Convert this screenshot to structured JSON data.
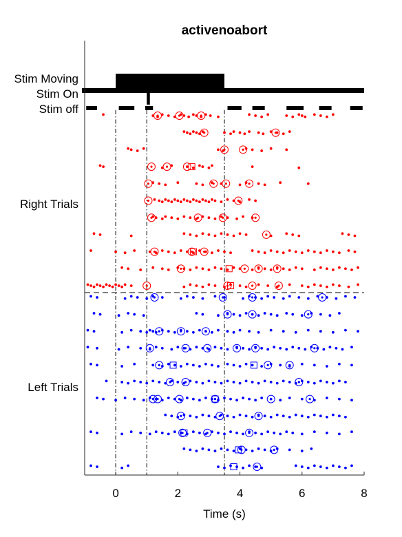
{
  "chart_data": {
    "type": "scatter",
    "title": "activenoabort",
    "xlabel": "Time (s)",
    "ylabel": "",
    "xlim": [
      -1,
      8
    ],
    "xticks": [
      0,
      2,
      4,
      6,
      8
    ],
    "xtick_labels": [
      "0",
      "2",
      "4",
      "6",
      "8"
    ],
    "row_labels": [
      "Stim Moving",
      "Stim On",
      "Stim off",
      "Right Trials",
      "Left Trials"
    ],
    "event_lines_x": [
      0,
      1,
      3.5
    ],
    "colors": {
      "right": "#ff0000",
      "left": "#0000ff",
      "text": "#000000"
    },
    "stim_moving": {
      "start": 0,
      "end": 3.5
    },
    "stim_on": {
      "start": -1,
      "end": 8
    },
    "stim_on_dips": [
      {
        "start": 1,
        "end": 1.1
      }
    ],
    "stim_off_segments": [
      [
        -0.95,
        -0.6
      ],
      [
        0.1,
        0.6
      ],
      [
        0.95,
        1.2
      ],
      [
        3.6,
        4.05
      ],
      [
        4.4,
        4.8
      ],
      [
        5.5,
        6.05
      ],
      [
        6.55,
        6.95
      ],
      [
        7.55,
        7.95
      ]
    ],
    "right_trials": [
      {
        "row": 1,
        "dots": [
          -0.4,
          1.2,
          1.35,
          1.5,
          1.7,
          1.9,
          2.1,
          2.2,
          2.35,
          2.5,
          2.6,
          2.75,
          2.9,
          3.05,
          3.3,
          4.3,
          4.5,
          4.7,
          4.9,
          5.5,
          5.7,
          5.9,
          6.0,
          6.1,
          6.4,
          6.6,
          6.8,
          7.0
        ],
        "circles": [
          1.35,
          2.05,
          2.75
        ],
        "squares": []
      },
      {
        "row": 2,
        "dots": [
          2.2,
          2.3,
          2.4,
          2.5,
          2.6,
          2.7,
          2.8,
          3.5,
          3.7,
          3.8,
          4.0,
          4.15,
          4.3,
          4.6,
          4.75,
          5.0,
          5.2,
          5.4,
          5.6
        ],
        "circles": [
          2.85,
          5.15
        ],
        "squares": []
      },
      {
        "row": 3,
        "dots": [
          0.4,
          0.5,
          0.7,
          0.9,
          3.3,
          3.45,
          4.2,
          4.4,
          4.7,
          5.0,
          5.5
        ],
        "circles": [
          3.5,
          4.1
        ],
        "squares": []
      },
      {
        "row": 4,
        "dots": [
          -0.5,
          -0.4,
          1.5,
          1.8,
          2.3,
          2.5,
          2.7,
          2.8,
          3.0,
          3.1,
          4.4,
          5.9
        ],
        "circles": [
          1.15,
          1.65,
          2.3
        ],
        "squares": [
          2.45
        ]
      },
      {
        "row": 5,
        "dots": [
          1.2,
          1.4,
          1.6,
          2.0,
          2.6,
          2.8,
          3.1,
          3.4,
          4.0,
          4.2,
          4.6,
          4.8,
          5.3,
          6.2
        ],
        "circles": [
          1.05,
          3.15,
          3.55,
          4.3
        ],
        "squares": []
      },
      {
        "row": 6,
        "dots": [
          1.25,
          1.4,
          1.5,
          1.6,
          1.7,
          1.8,
          1.9,
          2.0,
          2.1,
          2.2,
          2.3,
          2.4,
          2.5,
          2.6,
          2.7,
          2.8,
          2.9,
          3.0,
          3.1,
          3.2,
          3.4,
          3.6,
          3.8,
          4.0,
          4.3,
          4.5
        ],
        "circles": [
          1.05,
          3.95
        ],
        "squares": []
      },
      {
        "row": 7,
        "dots": [
          1.2,
          1.3,
          1.5,
          1.6,
          1.8,
          2.0,
          2.2,
          2.4,
          2.6,
          2.8,
          3.0,
          3.2,
          3.4,
          3.6,
          3.9,
          4.1,
          4.4
        ],
        "circles": [
          1.15,
          2.65,
          3.45,
          4.5
        ],
        "squares": []
      },
      {
        "row": 8,
        "dots": [
          -0.7,
          -0.5,
          0.5,
          2.2,
          2.4,
          2.6,
          2.8,
          3.0,
          3.2,
          3.4,
          3.6,
          3.8,
          4.0,
          4.2,
          5.0,
          5.5,
          5.7,
          5.9,
          7.3,
          7.5,
          7.7
        ],
        "circles": [
          4.85
        ],
        "squares": []
      },
      {
        "row": 9,
        "dots": [
          -0.8,
          0.0,
          0.3,
          0.6,
          1.1,
          1.3,
          1.5,
          1.7,
          1.9,
          2.1,
          2.3,
          2.5,
          2.7,
          2.9,
          3.1,
          3.3,
          3.5,
          3.7,
          4.4,
          4.6,
          4.8,
          5.0,
          5.2,
          5.4,
          5.6,
          5.8,
          6.0,
          6.2,
          6.4,
          6.6,
          6.8,
          7.0,
          7.2,
          7.5,
          7.7
        ],
        "circles": [
          1.25,
          2.45,
          2.85
        ],
        "squares": [
          2.5
        ]
      },
      {
        "row": 10,
        "dots": [
          0.2,
          0.4,
          0.8,
          1.2,
          1.5,
          1.7,
          2.0,
          2.2,
          2.4,
          2.6,
          2.8,
          3.0,
          3.2,
          3.4,
          3.6,
          3.8,
          4.0,
          4.4,
          4.6,
          4.8,
          5.0,
          5.2,
          5.4,
          5.6,
          5.8,
          6.0,
          6.4,
          6.6,
          6.8,
          7.0,
          7.2,
          7.4,
          7.6,
          7.8
        ],
        "circles": [
          2.1,
          4.15,
          4.6,
          5.2
        ],
        "squares": [
          3.65
        ]
      },
      {
        "row": 11,
        "dots": [
          -0.9,
          -0.8,
          -0.7,
          -0.6,
          -0.5,
          -0.4,
          -0.3,
          -0.2,
          -0.1,
          0.0,
          0.1,
          0.2,
          0.3,
          0.5,
          2.2,
          2.4,
          2.6,
          2.8,
          3.0,
          3.2,
          3.5,
          3.7,
          4.0,
          4.2,
          4.6,
          4.9,
          5.2,
          5.6,
          6.0,
          6.2,
          6.4,
          6.6,
          6.8,
          7.0,
          7.2,
          7.5,
          7.8
        ],
        "circles": [
          1.0,
          3.6,
          4.4,
          5.25
        ],
        "squares": [
          3.7
        ]
      }
    ],
    "left_trials": [
      {
        "row": 1,
        "dots": [
          -0.8,
          -0.6,
          0.3,
          0.5,
          0.7,
          1.0,
          1.2,
          1.5,
          2.1,
          2.3,
          2.5,
          2.8,
          3.2,
          3.5,
          4.1,
          4.3,
          4.5,
          4.7,
          4.9,
          5.1,
          5.4,
          5.6,
          5.9,
          6.2,
          6.5,
          6.8,
          7.1,
          7.4,
          7.7
        ],
        "circles": [
          1.25,
          3.45,
          4.4,
          6.65
        ],
        "squares": []
      },
      {
        "row": 2,
        "dots": [
          -0.7,
          -0.5,
          0.1,
          0.4,
          0.6,
          0.9,
          2.6,
          2.8,
          3.3,
          3.6,
          3.8,
          4.0,
          4.2,
          4.4,
          4.6,
          4.8,
          5.0,
          5.2,
          5.5,
          5.7,
          6.0,
          6.3,
          6.6,
          6.9,
          7.2
        ],
        "circles": [
          3.6,
          4.4,
          6.2
        ],
        "squares": []
      },
      {
        "row": 3,
        "dots": [
          -0.9,
          -0.7,
          0.2,
          0.5,
          0.8,
          1.0,
          1.1,
          1.2,
          1.3,
          1.5,
          1.7,
          1.9,
          2.1,
          2.3,
          2.5,
          2.7,
          2.9,
          3.1,
          3.3,
          3.6,
          3.8,
          4.0,
          4.3,
          4.6,
          5.0,
          5.4,
          5.8,
          6.2,
          6.6,
          7.0,
          7.4,
          7.8
        ],
        "circles": [
          1.4,
          2.1,
          2.9
        ],
        "squares": []
      },
      {
        "row": 4,
        "dots": [
          -0.9,
          -0.6,
          0.1,
          0.4,
          0.8,
          1.1,
          1.3,
          1.5,
          1.8,
          2.0,
          2.2,
          2.4,
          2.6,
          2.8,
          3.0,
          3.2,
          3.4,
          3.6,
          3.9,
          4.1,
          4.3,
          4.5,
          4.7,
          4.9,
          5.1,
          5.3,
          5.5,
          5.7,
          5.9,
          6.1,
          6.3,
          6.5,
          6.7,
          6.9,
          7.1,
          7.3,
          7.6
        ],
        "circles": [
          1.1,
          2.25,
          2.95,
          3.9,
          4.5,
          6.4
        ],
        "squares": []
      },
      {
        "row": 5,
        "dots": [
          -0.8,
          -0.6,
          0.2,
          0.6,
          1.2,
          1.5,
          1.7,
          1.9,
          2.1,
          2.3,
          2.5,
          2.7,
          2.9,
          3.1,
          3.3,
          3.6,
          3.8,
          4.0,
          4.2,
          4.4,
          4.7,
          5.0,
          5.3,
          5.6,
          6.0,
          6.4,
          6.8,
          7.2,
          7.6
        ],
        "circles": [
          1.4,
          4.9,
          5.6
        ],
        "squares": [
          1.85,
          4.45
        ]
      },
      {
        "row": 6,
        "dots": [
          -0.3,
          0.2,
          0.4,
          0.6,
          0.8,
          1.0,
          1.2,
          1.4,
          1.6,
          1.8,
          2.0,
          2.2,
          2.4,
          2.6,
          2.8,
          3.0,
          3.2,
          3.4,
          3.6,
          3.8,
          4.0,
          4.2,
          4.4,
          4.6,
          4.8,
          5.0,
          5.2,
          5.4,
          5.6,
          5.8,
          6.0,
          6.2,
          6.4,
          6.6,
          6.8,
          7.0,
          7.2,
          7.4
        ],
        "circles": [
          1.75,
          2.25,
          5.9
        ],
        "squares": []
      },
      {
        "row": 7,
        "dots": [
          -0.6,
          -0.4,
          0.0,
          0.3,
          0.6,
          0.9,
          1.1,
          1.3,
          1.5,
          1.7,
          1.9,
          2.1,
          2.3,
          2.5,
          2.7,
          2.9,
          3.1,
          3.3,
          3.5,
          3.7,
          3.9,
          4.1,
          4.3,
          4.5,
          4.7,
          5.0,
          5.3,
          5.6,
          6.0,
          6.4,
          6.8,
          7.2,
          7.6
        ],
        "circles": [
          1.2,
          1.35,
          2.05,
          3.2,
          5.0,
          6.25
        ],
        "squares": [
          3.2
        ]
      },
      {
        "row": 8,
        "dots": [
          1.6,
          1.8,
          2.0,
          2.2,
          2.4,
          2.6,
          2.8,
          3.0,
          3.2,
          3.4,
          3.6,
          3.8,
          4.0,
          4.2,
          4.4,
          4.6,
          4.8,
          5.0,
          5.2,
          5.4,
          5.6,
          5.8,
          6.0,
          6.2,
          6.4,
          6.6,
          6.8,
          7.0,
          7.2,
          7.4
        ],
        "circles": [
          2.1,
          3.35,
          4.6
        ],
        "squares": []
      },
      {
        "row": 9,
        "dots": [
          -0.8,
          -0.6,
          0.2,
          0.5,
          0.8,
          1.1,
          1.3,
          1.5,
          1.7,
          1.9,
          2.1,
          2.3,
          2.5,
          2.7,
          2.9,
          3.1,
          3.3,
          3.5,
          3.7,
          3.9,
          4.1,
          4.3,
          4.5,
          4.7,
          4.9,
          5.1,
          5.3,
          5.5,
          5.7,
          6.0,
          6.4,
          6.8,
          7.2,
          7.6
        ],
        "circles": [
          2.15,
          2.95,
          4.3
        ],
        "squares": [
          2.2
        ]
      },
      {
        "row": 10,
        "dots": [
          2.2,
          2.4,
          2.6,
          2.8,
          3.0,
          3.2,
          3.4,
          3.6,
          3.8,
          4.0,
          4.2,
          4.4,
          4.6,
          4.8,
          5.0,
          5.2,
          5.6,
          6.0,
          6.3
        ],
        "circles": [
          4.05,
          5.1
        ],
        "squares": [
          3.95
        ]
      },
      {
        "row": 11,
        "dots": [
          -0.8,
          -0.6,
          0.2,
          0.4,
          3.3,
          3.5,
          3.7,
          3.9,
          4.1,
          4.3,
          4.5,
          4.7,
          5.8,
          6.0,
          6.2,
          6.4,
          6.6,
          6.8,
          7.0,
          7.2,
          7.4,
          7.6
        ],
        "circles": [
          4.55
        ],
        "squares": [
          3.8
        ]
      }
    ]
  }
}
